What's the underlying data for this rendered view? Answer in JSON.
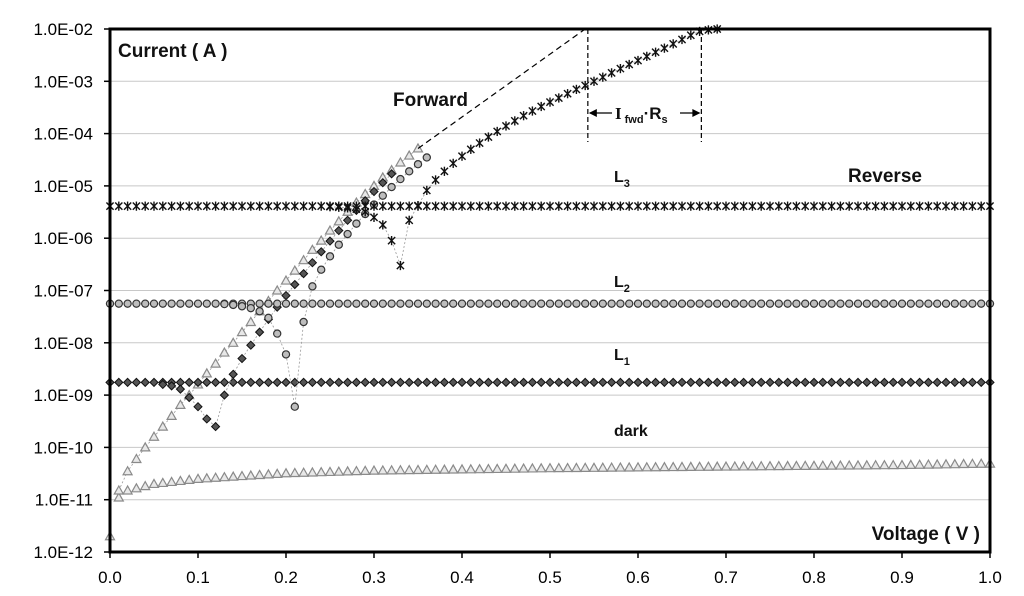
{
  "chart_data": {
    "type": "scatter",
    "title": "",
    "xlabel": "Voltage  ( V )",
    "ylabel": "Current ( A )",
    "yscale": "log",
    "xlim": [
      0.0,
      1.0
    ],
    "ylim": [
      1e-12,
      0.01
    ],
    "grid": "horizontal",
    "x_tick_labels": [
      "0.0",
      "0.1",
      "0.2",
      "0.3",
      "0.4",
      "0.5",
      "0.6",
      "0.7",
      "0.8",
      "0.9",
      "1.0"
    ],
    "y_tick_labels": [
      "1.0E-12",
      "1.0E-11",
      "1.0E-10",
      "1.0E-09",
      "1.0E-08",
      "1.0E-07",
      "1.0E-06",
      "1.0E-05",
      "1.0E-04",
      "1.0E-03",
      "1.0E-02"
    ],
    "annotations": {
      "forward": "Forward",
      "reverse": "Reverse",
      "l3": {
        "main": "L",
        "sub": "3"
      },
      "l2": {
        "main": "L",
        "sub": "2"
      },
      "l1": {
        "main": "L",
        "sub": "1"
      },
      "dark": "dark",
      "rs_label": {
        "i": "I",
        "fwd": "fwd",
        "dot": "·",
        "r": "R",
        "s": "s"
      }
    },
    "series": [
      {
        "marker": "triangle",
        "color": "#8a8a8a",
        "reverse_description": "dark reverse current",
        "reverse": [
          [
            0.0,
            2e-12
          ],
          [
            0.01,
            1.1e-11
          ],
          [
            0.02,
            1.5e-11
          ],
          [
            0.05,
            2e-11
          ],
          [
            0.1,
            2.5e-11
          ],
          [
            0.2,
            3.2e-11
          ],
          [
            0.3,
            3.6e-11
          ],
          [
            0.5,
            4e-11
          ],
          [
            0.7,
            4.3e-11
          ],
          [
            0.9,
            4.6e-11
          ],
          [
            1.0,
            4.9e-11
          ]
        ],
        "forward": [
          [
            0.01,
            1.5e-11
          ],
          [
            0.02,
            3.5e-11
          ],
          [
            0.03,
            6e-11
          ],
          [
            0.04,
            1e-10
          ],
          [
            0.05,
            1.6e-10
          ],
          [
            0.06,
            2.5e-10
          ],
          [
            0.07,
            4e-10
          ],
          [
            0.08,
            6.5e-10
          ],
          [
            0.09,
            1e-09
          ],
          [
            0.1,
            1.6e-09
          ],
          [
            0.11,
            2.6e-09
          ],
          [
            0.12,
            4e-09
          ],
          [
            0.13,
            6.5e-09
          ],
          [
            0.14,
            1e-08
          ],
          [
            0.15,
            1.6e-08
          ],
          [
            0.16,
            2.5e-08
          ],
          [
            0.17,
            4e-08
          ],
          [
            0.18,
            6.3e-08
          ],
          [
            0.19,
            1e-07
          ],
          [
            0.2,
            1.55e-07
          ],
          [
            0.21,
            2.4e-07
          ],
          [
            0.22,
            3.8e-07
          ],
          [
            0.23,
            6e-07
          ],
          [
            0.24,
            9e-07
          ],
          [
            0.25,
            1.4e-06
          ],
          [
            0.26,
            2.1e-06
          ],
          [
            0.27,
            3.2e-06
          ],
          [
            0.28,
            4.8e-06
          ],
          [
            0.29,
            7e-06
          ],
          [
            0.3,
            1e-05
          ],
          [
            0.31,
            1.45e-05
          ],
          [
            0.32,
            2e-05
          ],
          [
            0.33,
            2.8e-05
          ],
          [
            0.34,
            3.8e-05
          ],
          [
            0.35,
            5.2e-05
          ]
        ]
      },
      {
        "marker": "diamond",
        "color": "#3a3a3a",
        "reverse_description": "L1 reverse photocurrent",
        "reverse_value": 1.75e-09,
        "forward": [
          [
            0.06,
            1.6e-09
          ],
          [
            0.07,
            1.5e-09
          ],
          [
            0.08,
            1.3e-09
          ],
          [
            0.09,
            9e-10
          ],
          [
            0.1,
            6e-10
          ],
          [
            0.11,
            3.5e-10
          ],
          [
            0.12,
            2.5e-10
          ],
          [
            0.13,
            1e-09
          ],
          [
            0.14,
            2.5e-09
          ],
          [
            0.15,
            5e-09
          ],
          [
            0.16,
            9e-09
          ],
          [
            0.17,
            1.6e-08
          ],
          [
            0.18,
            2.8e-08
          ],
          [
            0.19,
            4.8e-08
          ],
          [
            0.2,
            8e-08
          ],
          [
            0.21,
            1.3e-07
          ],
          [
            0.22,
            2.1e-07
          ],
          [
            0.23,
            3.4e-07
          ],
          [
            0.24,
            5.5e-07
          ],
          [
            0.25,
            8.8e-07
          ],
          [
            0.26,
            1.4e-06
          ],
          [
            0.27,
            2.2e-06
          ],
          [
            0.28,
            3.4e-06
          ],
          [
            0.29,
            5.2e-06
          ],
          [
            0.3,
            7.8e-06
          ],
          [
            0.31,
            1.15e-05
          ],
          [
            0.32,
            1.7e-05
          ]
        ]
      },
      {
        "marker": "circle",
        "color": "#6e6e6e",
        "reverse_description": "L2 reverse photocurrent",
        "reverse_value": 5.6e-08,
        "forward": [
          [
            0.13,
            5.5e-08
          ],
          [
            0.14,
            5.3e-08
          ],
          [
            0.15,
            5e-08
          ],
          [
            0.16,
            4.6e-08
          ],
          [
            0.17,
            4e-08
          ],
          [
            0.18,
            3e-08
          ],
          [
            0.19,
            1.5e-08
          ],
          [
            0.2,
            6e-09
          ],
          [
            0.21,
            6e-10
          ],
          [
            0.22,
            2.5e-08
          ],
          [
            0.23,
            1.2e-07
          ],
          [
            0.24,
            2.5e-07
          ],
          [
            0.25,
            4.5e-07
          ],
          [
            0.26,
            7.5e-07
          ],
          [
            0.27,
            1.2e-06
          ],
          [
            0.28,
            1.9e-06
          ],
          [
            0.29,
            2.9e-06
          ],
          [
            0.3,
            4.4e-06
          ],
          [
            0.31,
            6.5e-06
          ],
          [
            0.32,
            9.5e-06
          ],
          [
            0.33,
            1.35e-05
          ],
          [
            0.34,
            1.9e-05
          ],
          [
            0.35,
            2.6e-05
          ],
          [
            0.36,
            3.5e-05
          ]
        ]
      },
      {
        "marker": "star",
        "color": "#111111",
        "reverse_description": "L3 reverse photocurrent",
        "reverse_value": 4.1e-06,
        "forward": [
          [
            0.25,
            4e-06
          ],
          [
            0.26,
            3.9e-06
          ],
          [
            0.27,
            3.8e-06
          ],
          [
            0.28,
            3.6e-06
          ],
          [
            0.29,
            3.2e-06
          ],
          [
            0.3,
            2.5e-06
          ],
          [
            0.31,
            1.8e-06
          ],
          [
            0.32,
            9e-07
          ],
          [
            0.33,
            3e-07
          ],
          [
            0.34,
            2.2e-06
          ],
          [
            0.35,
            4.2e-06
          ],
          [
            0.36,
            8.2e-06
          ],
          [
            0.37,
            1.3e-05
          ],
          [
            0.38,
            1.9e-05
          ],
          [
            0.39,
            2.7e-05
          ],
          [
            0.4,
            3.7e-05
          ],
          [
            0.41,
            5e-05
          ],
          [
            0.42,
            6.6e-05
          ],
          [
            0.43,
            8.6e-05
          ],
          [
            0.44,
            0.00011
          ],
          [
            0.45,
            0.00014
          ],
          [
            0.46,
            0.000175
          ],
          [
            0.47,
            0.00022
          ],
          [
            0.48,
            0.00027
          ],
          [
            0.49,
            0.00033
          ],
          [
            0.5,
            0.0004
          ],
          [
            0.51,
            0.00048
          ],
          [
            0.52,
            0.00058
          ],
          [
            0.53,
            0.0007
          ],
          [
            0.54,
            0.00083
          ],
          [
            0.55,
            0.001
          ],
          [
            0.56,
            0.0012
          ],
          [
            0.57,
            0.00145
          ],
          [
            0.58,
            0.00175
          ],
          [
            0.59,
            0.0021
          ],
          [
            0.6,
            0.0025
          ],
          [
            0.61,
            0.003
          ],
          [
            0.62,
            0.0036
          ],
          [
            0.63,
            0.0043
          ],
          [
            0.64,
            0.0052
          ],
          [
            0.65,
            0.0063
          ],
          [
            0.66,
            0.0076
          ],
          [
            0.67,
            0.009
          ],
          [
            0.68,
            0.0096
          ],
          [
            0.69,
            0.01
          ]
        ]
      }
    ],
    "ideal_line": [
      [
        0.35,
        5.2e-05
      ],
      [
        0.54,
        0.01
      ]
    ],
    "rs_bracket": [
      0.543,
      0.672
    ]
  }
}
